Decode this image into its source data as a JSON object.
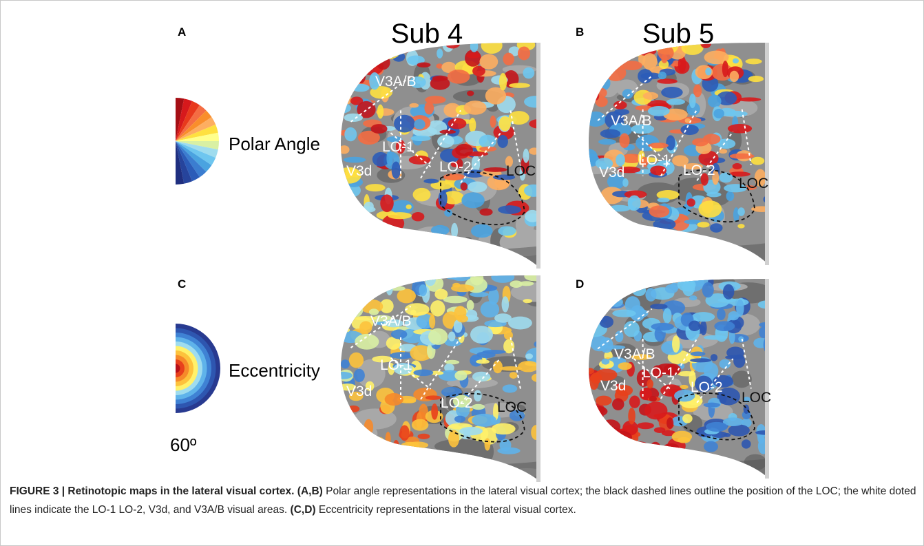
{
  "figure": {
    "panel_letters": [
      "A",
      "B",
      "C",
      "D"
    ],
    "column_titles": [
      "Sub 4",
      "Sub 5"
    ],
    "row_labels": [
      "Polar Angle",
      "Eccentricity"
    ],
    "scale_label": "60º",
    "panels": [
      {
        "areas": [
          "V3A/B",
          "LO-1",
          "V3d",
          "LO-2",
          "LOC"
        ]
      },
      {
        "areas": [
          "V3A/B",
          "LO-1",
          "V3d",
          "LO-2",
          "LOC"
        ]
      },
      {
        "areas": [
          "V3A/B",
          "LO-1",
          "V3d",
          "LO-2",
          "LOC"
        ]
      },
      {
        "areas": [
          "V3A/B",
          "LO-1",
          "V3d",
          "LO-2",
          "LOC"
        ]
      }
    ]
  },
  "caption": {
    "label": "FIGURE 3 | Retinotopic maps in the lateral visual cortex.",
    "parts": [
      {
        "ref": "(A,B)",
        "text": "Polar angle representations in the lateral visual cortex; the black dashed lines outline the position of the LOC; the white doted lines indicate the LO-1 LO-2, V3d, and V3A/B visual areas."
      },
      {
        "ref": "(C,D)",
        "text": "Eccentricity representations in the lateral visual cortex."
      }
    ]
  }
}
